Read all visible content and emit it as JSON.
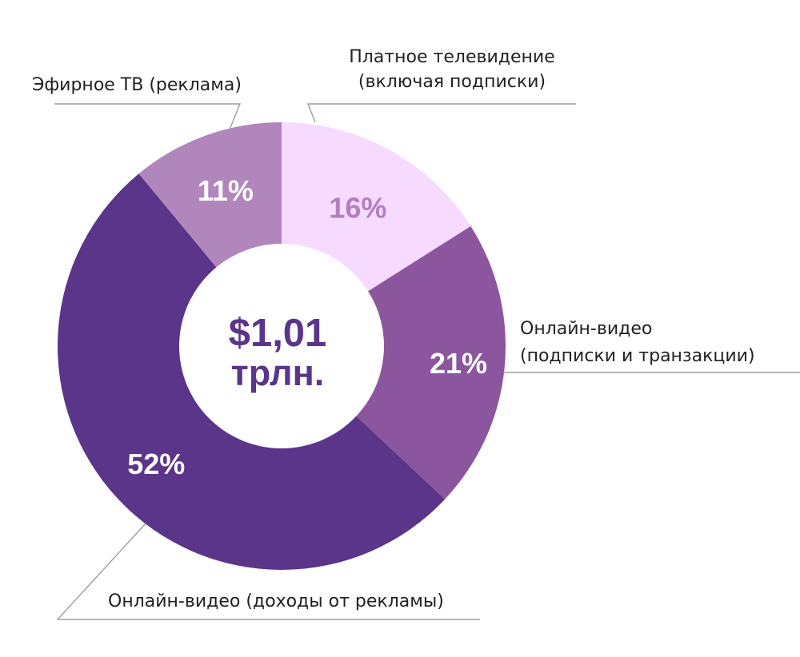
{
  "chart_data": {
    "type": "pie",
    "center_label": {
      "line1": "$1,01",
      "line2": "трлн."
    },
    "slices": [
      {
        "name": "Платное телевидение (включая подписки)",
        "label_lines": [
          "Платное телевидение",
          "(включая подписки)"
        ],
        "value": 16,
        "value_label": "16%",
        "color": "#f6daff",
        "value_color": "#b180bf"
      },
      {
        "name": "Онлайн-видео (подписки и транзакции)",
        "label_lines": [
          "Онлайн-видео",
          "(подписки и транзакции)"
        ],
        "value": 21,
        "value_label": "21%",
        "color": "#8c569f",
        "value_color": "#ffffff"
      },
      {
        "name": "Онлайн-видео (доходы от рекламы)",
        "label_lines": [
          "Онлайн-видео (доходы от рекламы)"
        ],
        "value": 52,
        "value_label": "52%",
        "color": "#5b3589",
        "value_color": "#ffffff"
      },
      {
        "name": "Эфирное ТВ (реклама)",
        "label_lines": [
          "Эфирное ТВ (реклама)"
        ],
        "value": 11,
        "value_label": "11%",
        "color": "#b186bc",
        "value_color": "#ffffff"
      }
    ]
  }
}
